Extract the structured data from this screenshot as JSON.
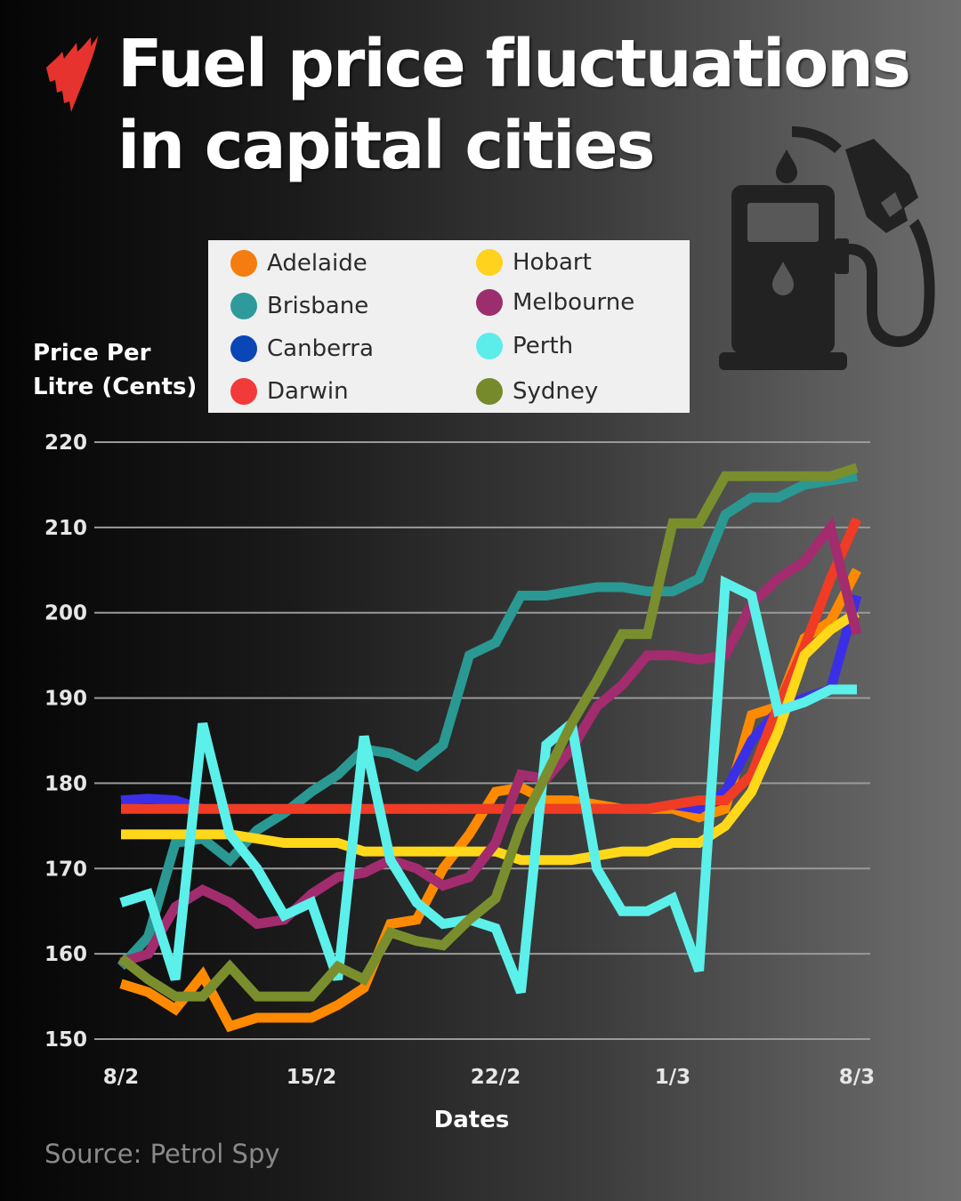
{
  "header": {
    "title_line1": "Fuel price fluctuations",
    "title_line2": "in capital cities",
    "logo_icon": "sbs-logo-icon",
    "illustration_icon": "fuel-pump-icon"
  },
  "axis": {
    "y_title_line1": "Price Per",
    "y_title_line2": "Litre (Cents)",
    "x_title": "Dates"
  },
  "legend": {
    "items": [
      {
        "label": "Adelaide",
        "color": "#F57C0F"
      },
      {
        "label": "Brisbane",
        "color": "#2E9A9C"
      },
      {
        "label": "Canberra",
        "color": "#0A46B5"
      },
      {
        "label": "Darwin",
        "color": "#F23A3A"
      },
      {
        "label": "Hobart",
        "color": "#FFD21E"
      },
      {
        "label": "Melbourne",
        "color": "#9C2E6E"
      },
      {
        "label": "Perth",
        "color": "#5CEDEB"
      },
      {
        "label": "Sydney",
        "color": "#768A2C"
      }
    ]
  },
  "footer": {
    "source": "Source: Petrol Spy"
  },
  "chart_data": {
    "type": "line",
    "title": "Fuel price fluctuations in capital cities",
    "xlabel": "Dates",
    "ylabel": "Price Per Litre (Cents)",
    "ylim": [
      150,
      220
    ],
    "yticks": [
      150,
      160,
      170,
      180,
      190,
      200,
      210,
      220
    ],
    "xticks": [
      "8/2",
      "15/2",
      "22/2",
      "1/3",
      "8/3"
    ],
    "grid": true,
    "legend_position": "top",
    "x": [
      "8/2",
      "9/2",
      "10/2",
      "11/2",
      "12/2",
      "13/2",
      "14/2",
      "15/2",
      "16/2",
      "17/2",
      "18/2",
      "19/2",
      "20/2",
      "21/2",
      "22/2",
      "23/2",
      "24/2",
      "25/2",
      "26/2",
      "27/2",
      "28/2",
      "1/3",
      "2/3",
      "3/3",
      "4/3",
      "5/3",
      "6/3",
      "7/3",
      "8/3"
    ],
    "series": [
      {
        "name": "Adelaide",
        "color": "#FF8A00",
        "values": [
          156.5,
          155.5,
          153.5,
          157.5,
          151.5,
          152.5,
          152.5,
          152.5,
          154,
          156,
          163.5,
          164,
          170,
          174,
          179,
          179.5,
          178,
          178,
          177.5,
          177,
          177,
          177,
          176,
          177,
          188,
          189,
          197,
          199,
          205
        ]
      },
      {
        "name": "Brisbane",
        "color": "#2A9893",
        "values": [
          158.5,
          162,
          173,
          173.5,
          171,
          174.5,
          176.5,
          179,
          181,
          184,
          183.5,
          182,
          184.5,
          195,
          196.5,
          202,
          202,
          202.5,
          203,
          203,
          202.5,
          202.5,
          204,
          211.5,
          213.5,
          213.5,
          215,
          215.5,
          216
        ]
      },
      {
        "name": "Canberra",
        "color": "#3A2FE6",
        "values": [
          178,
          178.2,
          178,
          177,
          177,
          177,
          177,
          177,
          177,
          177,
          177,
          177,
          177,
          177,
          177,
          177,
          177,
          177,
          177,
          177,
          177,
          177.5,
          177,
          179,
          185,
          188.5,
          190,
          191,
          202
        ]
      },
      {
        "name": "Darwin",
        "color": "#F03C24",
        "values": [
          177,
          177,
          177,
          177,
          177,
          177,
          177,
          177,
          177,
          177,
          177,
          177,
          177,
          177,
          177,
          177,
          177,
          177,
          177,
          177,
          177,
          177.5,
          178,
          178,
          181,
          189,
          196,
          204,
          211
        ]
      },
      {
        "name": "Hobart",
        "color": "#FFD81A",
        "values": [
          174,
          174,
          174,
          174,
          174,
          173.5,
          173,
          173,
          173,
          172,
          172,
          172,
          172,
          172,
          172,
          171,
          171,
          171,
          171.5,
          172,
          172,
          173,
          173,
          175,
          179,
          186,
          195,
          198,
          200
        ]
      },
      {
        "name": "Melbourne",
        "color": "#A22C6E",
        "values": [
          159,
          160,
          165.5,
          167.5,
          166,
          163.5,
          164,
          167,
          169,
          169.5,
          171,
          170,
          168,
          169,
          173,
          181,
          180.5,
          184,
          189,
          191.5,
          195,
          195,
          194.5,
          195,
          201,
          204,
          206,
          210,
          197.5
        ]
      },
      {
        "name": "Perth",
        "color": "#5CF0EB",
        "values": [
          166,
          167,
          157,
          187,
          174,
          170,
          164.5,
          166,
          157,
          185.5,
          171,
          166,
          163.5,
          164,
          163,
          155.5,
          184.5,
          187,
          170,
          165,
          165,
          166.5,
          158,
          203.5,
          202,
          188.5,
          189.5,
          191,
          191
        ]
      },
      {
        "name": "Sydney",
        "color": "#7A8E2E",
        "values": [
          159.5,
          157,
          155,
          155,
          158.5,
          155,
          155,
          155,
          158.5,
          157,
          162.5,
          161.5,
          161,
          164,
          166.5,
          175,
          181,
          187,
          192,
          197.5,
          197.5,
          210.5,
          210.5,
          216,
          216,
          216,
          216,
          216,
          217
        ]
      }
    ]
  }
}
